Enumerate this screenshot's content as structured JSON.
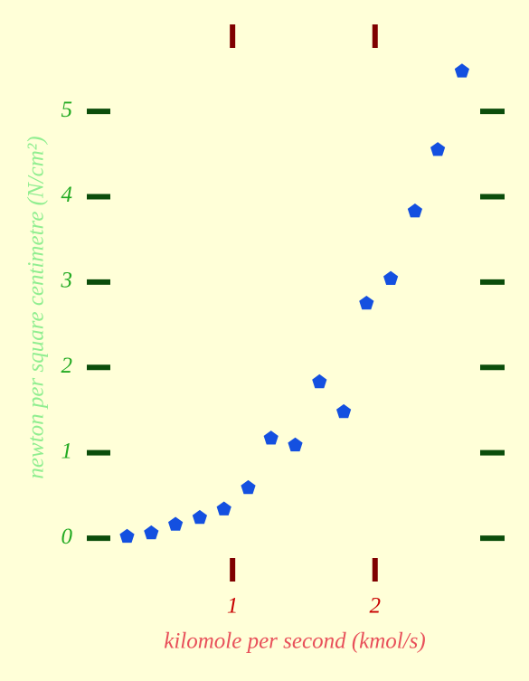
{
  "chart_data": {
    "type": "scatter",
    "xlabel": "kilomole per second (kmol/s)",
    "ylabel": "newton per square centimetre (N/cm²)",
    "x": [
      0.26,
      0.43,
      0.6,
      0.77,
      0.94,
      1.11,
      1.27,
      1.44,
      1.61,
      1.78,
      1.94,
      2.11,
      2.28,
      2.44,
      2.61
    ],
    "values": [
      0.02,
      0.06,
      0.16,
      0.24,
      0.34,
      0.59,
      1.17,
      1.09,
      1.83,
      1.48,
      2.75,
      3.04,
      3.83,
      4.55,
      5.47
    ],
    "color": "#1450e0",
    "xlim": [
      0.06,
      2.82
    ],
    "ylim": [
      -0.37,
      5.88
    ],
    "xticks": [
      1,
      2
    ],
    "yticks": [
      0,
      1,
      2,
      3,
      4,
      5
    ],
    "xtick_color": "#7f0000",
    "ytick_color": "#0b4d0b",
    "xlabel_color": "#e8505a",
    "ylabel_color": "#90ee90",
    "xticklabel_color": "#c80000",
    "yticklabel_color": "#22aa22"
  }
}
